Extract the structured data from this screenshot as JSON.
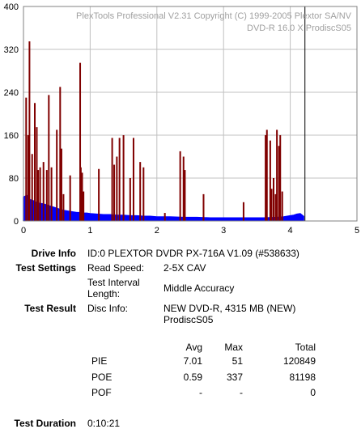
{
  "chart_data": {
    "type": "bar",
    "header_line1": "PlexTools Professional V2.31 Copyright (C) 1999-2005 Plextor SA/NV",
    "header_line2": "DVD-R   16.0 X   ProdiscS05",
    "x_ticks": [
      "0",
      "1",
      "2",
      "3",
      "4",
      "5"
    ],
    "y_ticks": [
      "0",
      "80",
      "160",
      "240",
      "320",
      "400"
    ],
    "xlim": [
      0,
      5
    ],
    "ylim": [
      0,
      400
    ],
    "end_marker_x": 4.22,
    "grid": true,
    "colors": {
      "pie": "#0000ff",
      "poe": "#800000",
      "grid": "#c0c0c0",
      "marker": "#000000"
    },
    "series": [
      {
        "name": "PIE",
        "x": [
          0.0,
          0.05,
          0.1,
          0.15,
          0.2,
          0.25,
          0.3,
          0.35,
          0.4,
          0.45,
          0.5,
          0.55,
          0.6,
          0.65,
          0.7,
          0.75,
          0.8,
          0.85,
          0.9,
          0.95,
          1.0,
          1.1,
          1.2,
          1.3,
          1.4,
          1.5,
          1.6,
          1.7,
          1.8,
          1.9,
          2.0,
          2.2,
          2.4,
          2.6,
          2.8,
          3.0,
          3.2,
          3.4,
          3.6,
          3.8,
          3.9,
          4.0,
          4.05,
          4.1,
          4.15,
          4.2
        ],
        "values": [
          45,
          48,
          40,
          38,
          34,
          33,
          32,
          30,
          28,
          26,
          24,
          22,
          20,
          19,
          18,
          17,
          16,
          16,
          15,
          15,
          14,
          13,
          12,
          12,
          11,
          11,
          10,
          10,
          9,
          9,
          8,
          8,
          7,
          7,
          6,
          6,
          6,
          6,
          6,
          7,
          8,
          10,
          11,
          13,
          14,
          9
        ]
      },
      {
        "name": "POE",
        "x": [
          0.04,
          0.07,
          0.09,
          0.13,
          0.17,
          0.2,
          0.22,
          0.25,
          0.3,
          0.35,
          0.38,
          0.42,
          0.5,
          0.55,
          0.57,
          0.6,
          0.7,
          0.85,
          0.86,
          0.88,
          0.9,
          1.13,
          1.33,
          1.36,
          1.4,
          1.44,
          1.5,
          1.6,
          1.65,
          1.75,
          1.8,
          2.12,
          2.35,
          2.4,
          2.42,
          2.7,
          3.3,
          3.63,
          3.65,
          3.7,
          3.72,
          3.75,
          3.78,
          3.8,
          3.83,
          3.85,
          3.88
        ],
        "values": [
          230,
          160,
          335,
          125,
          220,
          175,
          95,
          100,
          110,
          95,
          235,
          100,
          170,
          250,
          135,
          50,
          85,
          295,
          100,
          90,
          55,
          97,
          155,
          105,
          120,
          155,
          160,
          80,
          155,
          110,
          100,
          15,
          130,
          120,
          95,
          50,
          35,
          160,
          170,
          150,
          60,
          80,
          50,
          170,
          140,
          160,
          55
        ]
      }
    ]
  },
  "info": {
    "drive_label": "Drive Info",
    "drive_value": "ID:0 PLEXTOR DVDR PX-716A V1.09 (#538633)",
    "settings_label": "Test Settings",
    "read_speed_label": "Read Speed:",
    "read_speed_value": "2-5X CAV",
    "interval_label_1": "Test Interval",
    "interval_label_2": "Length:",
    "interval_value": "Middle Accuracy",
    "result_label": "Test Result",
    "disc_info_label": "Disc Info:",
    "disc_info_value_1": "NEW DVD-R, 4315 MB (NEW)",
    "disc_info_value_2": "ProdiscS05",
    "duration_label": "Test Duration",
    "duration_value": "0:10:21"
  },
  "stats": {
    "headers": {
      "avg": "Avg",
      "max": "Max",
      "total": "Total"
    },
    "rows": [
      {
        "name": "PIE",
        "avg": "7.01",
        "max": "51",
        "total": "120849"
      },
      {
        "name": "POE",
        "avg": "0.59",
        "max": "337",
        "total": "81198"
      },
      {
        "name": "POF",
        "avg": "-",
        "max": "-",
        "total": "0"
      }
    ]
  }
}
